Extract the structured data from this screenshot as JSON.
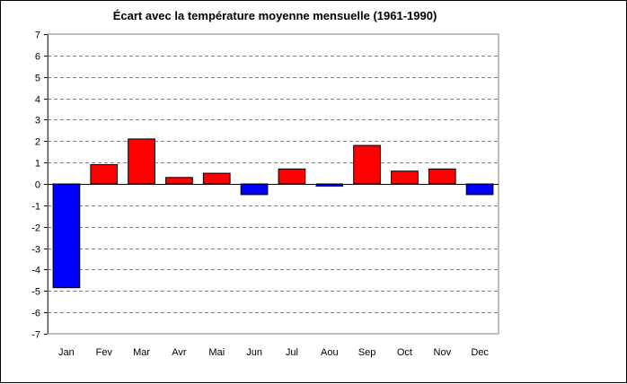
{
  "chart_data": {
    "type": "bar",
    "title": "Écart avec la température moyenne mensuelle (1961-1990)",
    "xlabel": "",
    "ylabel": "",
    "categories": [
      "Jan",
      "Fev",
      "Mar",
      "Avr",
      "Mai",
      "Jun",
      "Jul",
      "Aou",
      "Sep",
      "Oct",
      "Nov",
      "Dec"
    ],
    "values": [
      -4.85,
      0.9,
      2.1,
      0.3,
      0.5,
      -0.5,
      0.7,
      -0.1,
      1.8,
      0.6,
      0.7,
      -0.5
    ],
    "ylim": [
      -7,
      7
    ],
    "yticks": [
      "7",
      "6",
      "5",
      "4",
      "3",
      "2",
      "1",
      "0",
      "-1",
      "-2",
      "-3",
      "-4",
      "-5",
      "-6",
      "-7"
    ],
    "grid": true,
    "legend": "none",
    "colors": {
      "positive": "#ff0000",
      "negative": "#0000ff",
      "grid": "#808080",
      "plot_border": "#808080"
    }
  }
}
